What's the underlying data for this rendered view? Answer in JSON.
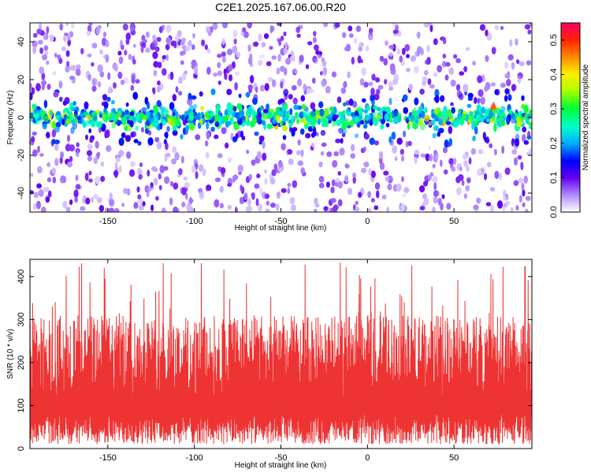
{
  "title": "C2E1.2025.167.06.00.R20",
  "chart_data": [
    {
      "type": "heatmap",
      "xlabel": "Height of straight line (km)",
      "ylabel": "Frequency (Hz)",
      "xlim": [
        -195,
        95
      ],
      "ylim": [
        -50,
        50
      ],
      "xticks": [
        -150,
        -100,
        -50,
        0,
        50
      ],
      "yticks": [
        -40,
        -20,
        0,
        20,
        40
      ],
      "colorbar": {
        "label": "Normalized spectral amplitude",
        "range": [
          0.0,
          0.55
        ],
        "ticks": [
          0.0,
          0.1,
          0.2,
          0.3,
          0.4,
          0.5
        ]
      },
      "grid": false
    },
    {
      "type": "area",
      "xlabel": "Height of straight line (km)",
      "ylabel": "SNR (10 * v/v)",
      "xlim": [
        -195,
        95
      ],
      "ylim": [
        0,
        440
      ],
      "xticks": [
        -150,
        -100,
        -50,
        0,
        50
      ],
      "yticks": [
        0,
        100,
        200,
        300,
        400
      ],
      "color": "#ee3333",
      "baseline_approx": 30,
      "typical_peak_approx": 250,
      "max_peak_approx": 435,
      "grid": false
    }
  ]
}
